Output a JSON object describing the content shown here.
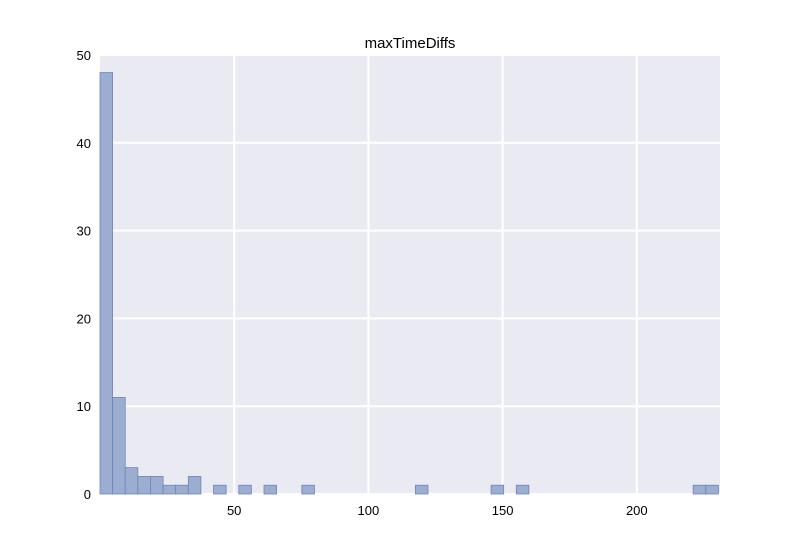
{
  "chart_data": {
    "type": "bar",
    "title": "maxTimeDiffs",
    "xlabel": "",
    "ylabel": "",
    "xlim": [
      0,
      231
    ],
    "ylim": [
      0,
      50
    ],
    "x_ticks": [
      50,
      100,
      150,
      200
    ],
    "y_ticks": [
      0,
      10,
      20,
      30,
      40,
      50
    ],
    "grid": true,
    "colors": {
      "background": "#eaeaf2",
      "grid": "#ffffff",
      "bar_fill": "#9badd1",
      "bar_stroke": "#6f85b8"
    },
    "bin_width": 4.7,
    "bins": [
      {
        "x": 0.0,
        "count": 48
      },
      {
        "x": 4.7,
        "count": 11
      },
      {
        "x": 9.4,
        "count": 3
      },
      {
        "x": 14.1,
        "count": 2
      },
      {
        "x": 18.8,
        "count": 2
      },
      {
        "x": 23.5,
        "count": 1
      },
      {
        "x": 28.2,
        "count": 1
      },
      {
        "x": 32.9,
        "count": 2
      },
      {
        "x": 42.3,
        "count": 1
      },
      {
        "x": 51.7,
        "count": 1
      },
      {
        "x": 61.1,
        "count": 1
      },
      {
        "x": 75.2,
        "count": 1
      },
      {
        "x": 117.5,
        "count": 1
      },
      {
        "x": 145.7,
        "count": 1
      },
      {
        "x": 155.1,
        "count": 1
      },
      {
        "x": 221.0,
        "count": 1
      },
      {
        "x": 225.7,
        "count": 1
      }
    ]
  }
}
